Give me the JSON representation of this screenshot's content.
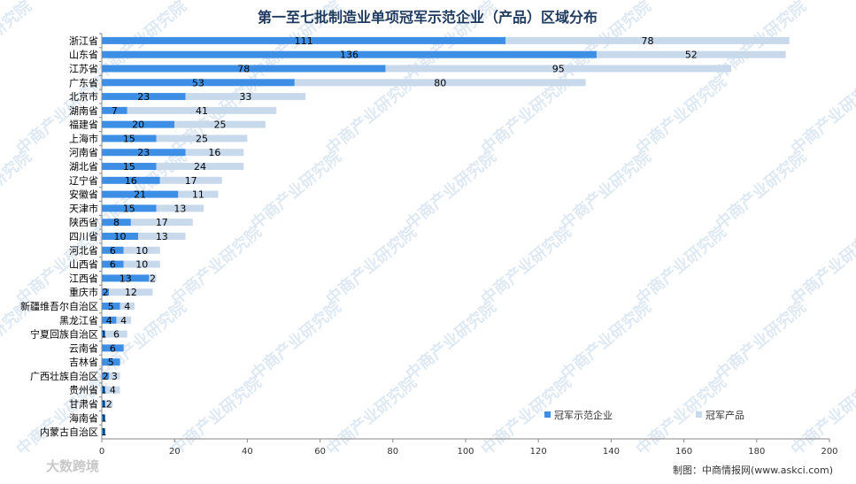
{
  "chart_data": {
    "type": "bar",
    "orientation": "horizontal",
    "stacked": true,
    "title": "第一至七批制造业单项冠军示范企业（产品）区域分布",
    "categories": [
      "浙江省",
      "山东省",
      "江苏省",
      "广东省",
      "北京市",
      "湖南省",
      "福建省",
      "上海市",
      "河南省",
      "湖北省",
      "辽宁省",
      "安徽省",
      "天津市",
      "陕西省",
      "四川省",
      "河北省",
      "山西省",
      "江西省",
      "重庆市",
      "新疆维吾尔自治区",
      "黑龙江省",
      "宁夏回族自治区",
      "云南省",
      "吉林省",
      "广西壮族自治区",
      "贵州省",
      "甘肃省",
      "海南省",
      "内蒙古自治区"
    ],
    "series": [
      {
        "name": "冠军示范企业",
        "color": "#3d8fe6",
        "values": [
          111,
          136,
          78,
          53,
          23,
          7,
          20,
          15,
          23,
          15,
          16,
          21,
          15,
          8,
          10,
          6,
          6,
          13,
          2,
          5,
          4,
          1,
          6,
          5,
          2,
          1,
          1,
          1,
          1
        ],
        "labels": [
          "111",
          "136",
          "78",
          "53",
          "23",
          "7",
          "20",
          "15",
          "23",
          "15",
          "16",
          "21",
          "15",
          "8",
          "10",
          "6",
          "6",
          "13",
          "2",
          "5",
          "4",
          "1",
          "6",
          "5",
          "2",
          "1",
          "1",
          "1",
          "1"
        ]
      },
      {
        "name": "冠军产品",
        "color": "#c9d9ec",
        "values": [
          78,
          52,
          95,
          80,
          33,
          41,
          25,
          25,
          16,
          24,
          17,
          11,
          13,
          17,
          13,
          10,
          10,
          2,
          12,
          4,
          4,
          6,
          0,
          0,
          3,
          4,
          2,
          0,
          0
        ],
        "labels": [
          "78",
          "52",
          "95",
          "80",
          "33",
          "41",
          "25",
          "25",
          "16",
          "24",
          "17",
          "11",
          "13",
          "17",
          "13",
          "10",
          "10",
          "2",
          "12",
          "4",
          "4",
          "6",
          "",
          "",
          "3",
          "4",
          "2",
          "",
          ""
        ]
      }
    ],
    "xlim": [
      0,
      200
    ],
    "xticks": [
      "0",
      "20",
      "40",
      "60",
      "80",
      "100",
      "120",
      "140",
      "160",
      "180",
      "200"
    ],
    "legend_position": "bottom-right",
    "grid": false
  },
  "credit": "制图：中商情报网(www.askci.com)",
  "watermark": "中商产业研究院",
  "bottom_logo": "大数跨境"
}
